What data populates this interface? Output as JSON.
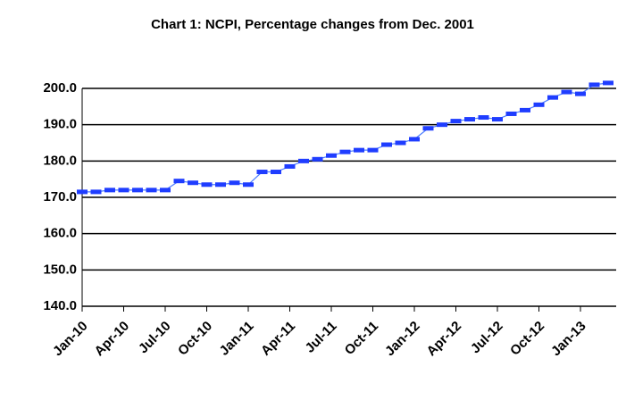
{
  "chart_data": {
    "type": "line",
    "title": "Chart 1: NCPI, Percentage changes from Dec. 2001",
    "categories": [
      "Jan-10",
      null,
      null,
      "Apr-10",
      null,
      null,
      "Jul-10",
      null,
      null,
      "Oct-10",
      null,
      null,
      "Jan-11",
      null,
      null,
      "Apr-11",
      null,
      null,
      "Jul-11",
      null,
      null,
      "Oct-11",
      null,
      null,
      "Jan-12",
      null,
      null,
      "Apr-12",
      null,
      null,
      "Jul-12",
      null,
      null,
      "Oct-12",
      null,
      null,
      "Jan-13",
      null,
      null
    ],
    "values": [
      171.5,
      171.5,
      172,
      172,
      172,
      172,
      172,
      174.5,
      174,
      173.5,
      173.5,
      174,
      173.5,
      177,
      177,
      178.5,
      180,
      180.5,
      181.5,
      182.5,
      183,
      183,
      184.5,
      185,
      186,
      189,
      190,
      191,
      191.5,
      192,
      191.5,
      193,
      194,
      195.5,
      197.5,
      199,
      198.5,
      201,
      201.5
    ],
    "color": "#1f3dff",
    "ylim": [
      140,
      200
    ],
    "yticks": [
      {
        "value": 140,
        "label": "140.0"
      },
      {
        "value": 150,
        "label": "150.0"
      },
      {
        "value": 160,
        "label": "160.0"
      },
      {
        "value": 170,
        "label": "170.0"
      },
      {
        "value": 180,
        "label": "180.0"
      },
      {
        "value": 190,
        "label": "190.0"
      },
      {
        "value": 200,
        "label": "200.0"
      }
    ],
    "grid": true
  }
}
